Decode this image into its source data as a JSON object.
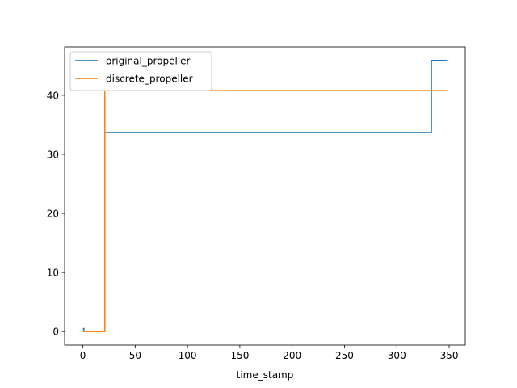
{
  "chart_data": {
    "type": "line",
    "title": "",
    "xlabel": "time_stamp",
    "ylabel": "",
    "xlim": [
      -17.4,
      365.4
    ],
    "ylim": [
      -2.3,
      48.2
    ],
    "xticks": [
      0,
      50,
      100,
      150,
      200,
      250,
      300,
      350
    ],
    "yticks": [
      0,
      10,
      20,
      30,
      40
    ],
    "grid": false,
    "legend_position": "upper-left",
    "series": [
      {
        "name": "original_propeller",
        "color": "#1f77b4",
        "step": true,
        "x": [
          0,
          1,
          21,
          333,
          348
        ],
        "y": [
          0.5,
          0,
          33.7,
          45.9,
          45.9
        ]
      },
      {
        "name": "discrete_propeller",
        "color": "#ff7f0e",
        "step": true,
        "x": [
          0,
          21,
          348
        ],
        "y": [
          0,
          40.8,
          40.8
        ]
      }
    ]
  }
}
